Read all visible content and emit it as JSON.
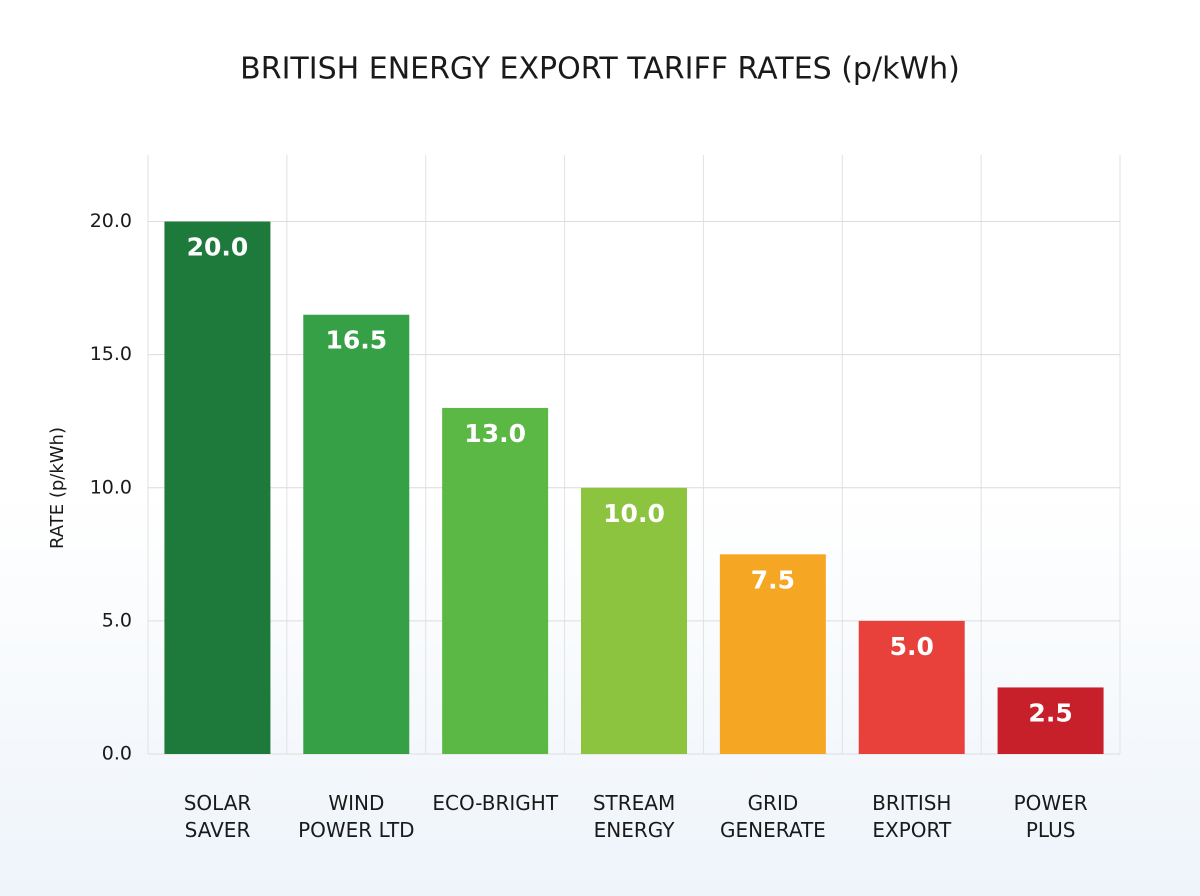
{
  "chart_data": {
    "type": "bar",
    "title": "BRITISH ENERGY EXPORT TARIFF RATES (p/kWh)",
    "y_label": "RATE (p/kWh)",
    "categories": [
      "SOLAR\nSAVER",
      "WIND\nPOWER LTD",
      "ECO-BRIGHT",
      "STREAM\nENERGY",
      "GRID\nGENERATE",
      "BRITISH\nEXPORT",
      "POWER\nPLUS"
    ],
    "values": [
      20.0,
      16.5,
      13.0,
      10.0,
      7.5,
      5.0,
      2.5
    ],
    "value_labels": [
      "20.0",
      "16.5",
      "13.0",
      "10.0",
      "7.5",
      "5.0",
      "2.5"
    ],
    "colors": [
      "#1e7a3a",
      "#36a046",
      "#5cb845",
      "#8cc440",
      "#f5a623",
      "#e8403a",
      "#c8202a"
    ],
    "ylim": [
      0,
      22.5
    ],
    "yticks": [
      {
        "value": 0,
        "label": "0.0"
      },
      {
        "value": 5,
        "label": "5.0"
      },
      {
        "value": 10,
        "label": "10.0"
      },
      {
        "value": 15,
        "label": "15.0"
      },
      {
        "value": 20,
        "label": "20.0"
      }
    ],
    "grid": true
  }
}
